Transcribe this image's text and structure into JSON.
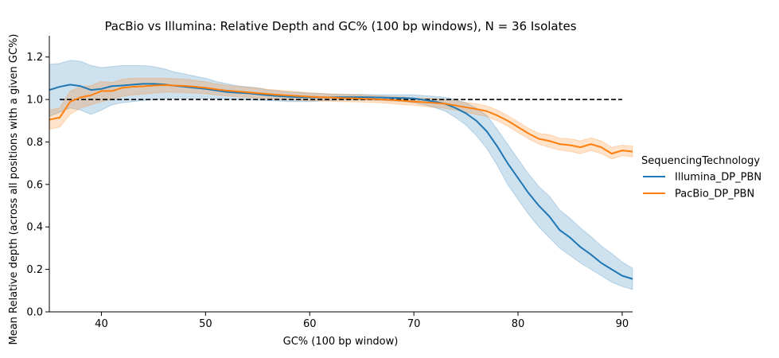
{
  "chart_data": {
    "type": "line",
    "title": "PacBio vs Illumina: Relative Depth and GC% (100 bp windows), N = 36 Isolates",
    "xlabel": "GC% (100 bp window)",
    "ylabel": "Mean Relative depth (across all positions with a given GC%)",
    "xlim": [
      35,
      91
    ],
    "ylim": [
      0,
      1.3
    ],
    "x_ticks": [
      40,
      50,
      60,
      70,
      80,
      90
    ],
    "y_ticks": [
      0.0,
      0.2,
      0.4,
      0.6,
      0.8,
      1.0,
      1.2
    ],
    "y_tick_labels": [
      "0.0",
      "0.2",
      "0.4",
      "0.6",
      "0.8",
      "1.0",
      "1.2"
    ],
    "grid": false,
    "legend": {
      "title": "SequencingTechnology",
      "placement": "right-outside"
    },
    "reference_line": {
      "y": 1.0,
      "x_range": [
        36,
        90
      ],
      "style": "dashed",
      "color": "#000000"
    },
    "series": [
      {
        "name": "Illumina_DP_PBN",
        "color": "#1f77b4",
        "x": [
          35,
          36,
          37,
          38,
          39,
          40,
          41,
          42,
          43,
          44,
          45,
          46,
          47,
          48,
          49,
          50,
          51,
          52,
          53,
          54,
          55,
          56,
          57,
          58,
          59,
          60,
          61,
          62,
          63,
          64,
          65,
          66,
          67,
          68,
          69,
          70,
          71,
          72,
          73,
          74,
          75,
          76,
          77,
          78,
          79,
          80,
          81,
          82,
          83,
          84,
          85,
          86,
          87,
          88,
          89,
          90,
          91
        ],
        "y": [
          1.045,
          1.06,
          1.07,
          1.063,
          1.045,
          1.05,
          1.063,
          1.066,
          1.07,
          1.074,
          1.074,
          1.071,
          1.065,
          1.06,
          1.055,
          1.05,
          1.043,
          1.036,
          1.032,
          1.03,
          1.025,
          1.02,
          1.016,
          1.013,
          1.011,
          1.01,
          1.01,
          1.01,
          1.011,
          1.011,
          1.011,
          1.01,
          1.009,
          1.008,
          1.007,
          1.005,
          0.998,
          0.99,
          0.98,
          0.96,
          0.935,
          0.9,
          0.85,
          0.78,
          0.7,
          0.63,
          0.56,
          0.5,
          0.45,
          0.385,
          0.35,
          0.305,
          0.27,
          0.23,
          0.2,
          0.17,
          0.155
        ],
        "lower": [
          0.92,
          0.94,
          0.96,
          0.95,
          0.93,
          0.95,
          0.975,
          0.985,
          0.99,
          0.995,
          1.0,
          1.005,
          1.005,
          1.005,
          1.005,
          1.005,
          1.005,
          1.002,
          1.0,
          1.0,
          0.997,
          0.995,
          0.993,
          0.99,
          0.99,
          0.99,
          0.993,
          0.995,
          0.997,
          0.998,
          0.998,
          0.997,
          0.995,
          0.993,
          0.99,
          0.985,
          0.975,
          0.962,
          0.945,
          0.915,
          0.88,
          0.83,
          0.77,
          0.69,
          0.6,
          0.53,
          0.46,
          0.4,
          0.35,
          0.3,
          0.265,
          0.23,
          0.2,
          0.17,
          0.14,
          0.12,
          0.105
        ],
        "upper": [
          1.165,
          1.17,
          1.185,
          1.18,
          1.16,
          1.15,
          1.155,
          1.16,
          1.16,
          1.16,
          1.155,
          1.145,
          1.13,
          1.12,
          1.11,
          1.1,
          1.085,
          1.075,
          1.065,
          1.06,
          1.055,
          1.045,
          1.04,
          1.035,
          1.033,
          1.03,
          1.028,
          1.026,
          1.025,
          1.024,
          1.024,
          1.023,
          1.022,
          1.022,
          1.022,
          1.022,
          1.018,
          1.015,
          1.01,
          1.0,
          0.985,
          0.96,
          0.925,
          0.86,
          0.79,
          0.72,
          0.65,
          0.59,
          0.545,
          0.48,
          0.44,
          0.395,
          0.355,
          0.31,
          0.275,
          0.235,
          0.205
        ]
      },
      {
        "name": "PacBio_DP_PBN",
        "color": "#ff7f0e",
        "x": [
          35,
          36,
          37,
          38,
          39,
          40,
          41,
          42,
          43,
          44,
          45,
          46,
          47,
          48,
          49,
          50,
          51,
          52,
          53,
          54,
          55,
          56,
          57,
          58,
          59,
          60,
          61,
          62,
          63,
          64,
          65,
          66,
          67,
          68,
          69,
          70,
          71,
          72,
          73,
          74,
          75,
          76,
          77,
          78,
          79,
          80,
          81,
          82,
          83,
          84,
          85,
          86,
          87,
          88,
          89,
          90,
          91
        ],
        "y": [
          0.905,
          0.915,
          0.99,
          1.01,
          1.02,
          1.04,
          1.04,
          1.055,
          1.06,
          1.062,
          1.066,
          1.068,
          1.066,
          1.064,
          1.06,
          1.055,
          1.048,
          1.042,
          1.038,
          1.034,
          1.03,
          1.026,
          1.022,
          1.019,
          1.016,
          1.013,
          1.011,
          1.009,
          1.007,
          1.006,
          1.004,
          1.002,
          1.0,
          0.997,
          0.994,
          0.99,
          0.987,
          0.984,
          0.98,
          0.972,
          0.963,
          0.955,
          0.945,
          0.925,
          0.9,
          0.87,
          0.84,
          0.815,
          0.805,
          0.79,
          0.785,
          0.775,
          0.79,
          0.775,
          0.745,
          0.76,
          0.755
        ],
        "lower": [
          0.86,
          0.87,
          0.93,
          0.96,
          0.975,
          0.99,
          1.0,
          1.015,
          1.022,
          1.025,
          1.03,
          1.035,
          1.034,
          1.032,
          1.03,
          1.027,
          1.022,
          1.017,
          1.014,
          1.01,
          1.007,
          1.004,
          1.0,
          0.998,
          0.996,
          0.994,
          0.993,
          0.992,
          0.99,
          0.989,
          0.988,
          0.986,
          0.984,
          0.98,
          0.976,
          0.972,
          0.968,
          0.963,
          0.958,
          0.95,
          0.94,
          0.93,
          0.92,
          0.9,
          0.875,
          0.845,
          0.815,
          0.79,
          0.775,
          0.762,
          0.755,
          0.745,
          0.76,
          0.745,
          0.72,
          0.735,
          0.73
        ],
        "upper": [
          0.95,
          0.96,
          1.04,
          1.06,
          1.065,
          1.085,
          1.08,
          1.095,
          1.1,
          1.1,
          1.1,
          1.1,
          1.098,
          1.096,
          1.09,
          1.083,
          1.074,
          1.067,
          1.062,
          1.058,
          1.053,
          1.048,
          1.044,
          1.04,
          1.036,
          1.032,
          1.029,
          1.026,
          1.024,
          1.023,
          1.021,
          1.019,
          1.016,
          1.014,
          1.012,
          1.008,
          1.006,
          1.004,
          1.0,
          0.994,
          0.986,
          0.98,
          0.97,
          0.95,
          0.925,
          0.895,
          0.865,
          0.84,
          0.835,
          0.818,
          0.815,
          0.805,
          0.82,
          0.805,
          0.775,
          0.785,
          0.78
        ]
      }
    ]
  }
}
